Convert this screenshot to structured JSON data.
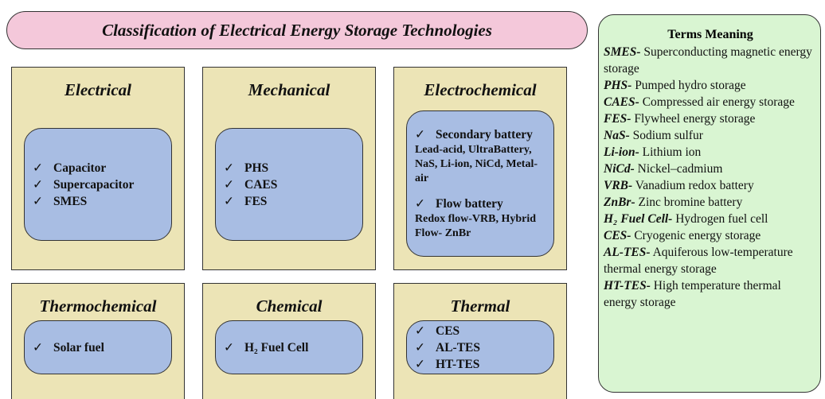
{
  "title": "Classification of Electrical Energy Storage Technologies",
  "categories": [
    {
      "title": "Electrical",
      "items": [
        {
          "name": "Capacitor"
        },
        {
          "name": "Supercapacitor"
        },
        {
          "name": "SMES"
        }
      ]
    },
    {
      "title": "Mechanical",
      "items": [
        {
          "name": "PHS"
        },
        {
          "name": "CAES"
        },
        {
          "name": "FES"
        }
      ]
    },
    {
      "title": "Electrochemical",
      "items": [
        {
          "name": "Secondary battery",
          "detail": "Lead-acid, UltraBattery, NaS, Li-ion, NiCd, Metal-air"
        },
        {
          "name": "Flow battery",
          "detail": "Redox flow-VRB, Hybrid Flow- ZnBr"
        }
      ]
    },
    {
      "title": "Thermochemical",
      "items": [
        {
          "name": "Solar fuel"
        }
      ]
    },
    {
      "title": "Chemical",
      "items": [
        {
          "name": "H₂ Fuel Cell"
        }
      ]
    },
    {
      "title": "Thermal",
      "items": [
        {
          "name": "CES"
        },
        {
          "name": "AL-TES"
        },
        {
          "name": "HT-TES"
        }
      ]
    }
  ],
  "terms": {
    "title": "Terms Meaning",
    "entries": [
      {
        "term": "SMES-",
        "meaning": "Superconducting magnetic energy storage"
      },
      {
        "term": "PHS-",
        "meaning": "Pumped hydro storage"
      },
      {
        "term": "CAES-",
        "meaning": "Compressed air energy storage"
      },
      {
        "term": "FES-",
        "meaning": "Flywheel energy storage"
      },
      {
        "term": "NaS-",
        "meaning": "Sodium sulfur"
      },
      {
        "term": "Li-ion-",
        "meaning": "Lithium ion"
      },
      {
        "term": "NiCd-",
        "meaning": "Nickel–cadmium"
      },
      {
        "term": "VRB-",
        "meaning": "Vanadium redox battery"
      },
      {
        "term": "ZnBr-",
        "meaning": "Zinc bromine battery"
      },
      {
        "term": "H₂ Fuel Cell-",
        "meaning": "Hydrogen fuel cell"
      },
      {
        "term": "CES-",
        "meaning": "Cryogenic energy storage"
      },
      {
        "term": "AL-TES-",
        "meaning": "Aquiferous low-temperature thermal energy storage"
      },
      {
        "term": "HT-TES-",
        "meaning": "High temperature thermal energy storage"
      }
    ]
  }
}
